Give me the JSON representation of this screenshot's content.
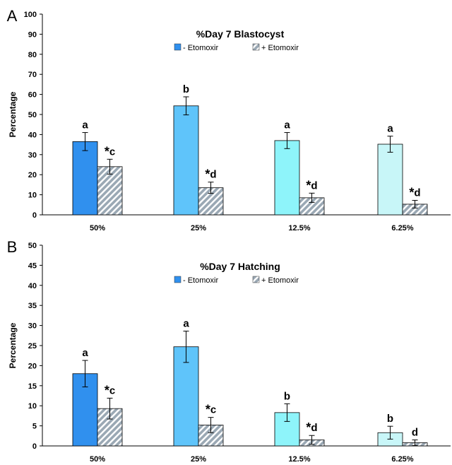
{
  "chart_data": [
    {
      "type": "bar",
      "panel": "A",
      "title": "%Day 7 Blastocyst",
      "ylabel": "Percentage",
      "xlabel": "",
      "ylim": [
        0,
        100
      ],
      "yticks": [
        0,
        10,
        20,
        30,
        40,
        50,
        60,
        70,
        80,
        90,
        100
      ],
      "categories": [
        "50%",
        "25%",
        "12.5%",
        "6.25%"
      ],
      "colors": [
        "#3090ee",
        "#5fc4fa",
        "#8ef4fa",
        "#c8f6f8"
      ],
      "hatch_color": "#9aa8b4",
      "legend_position": "top",
      "series": [
        {
          "name": "- Etomoxir",
          "values": [
            36.5,
            54.3,
            37.0,
            35.2
          ],
          "errors": [
            4.5,
            4.5,
            4.0,
            4.0
          ],
          "labels": [
            "a",
            "b",
            "a",
            "a"
          ]
        },
        {
          "name": "+ Etomoxir",
          "values": [
            24.0,
            13.5,
            8.5,
            5.3
          ],
          "errors": [
            3.7,
            2.8,
            2.3,
            1.9
          ],
          "labels": [
            "*c",
            "*d",
            "*d",
            "*d"
          ]
        }
      ]
    },
    {
      "type": "bar",
      "panel": "B",
      "title": "%Day 7 Hatching",
      "ylabel": "Percentage",
      "xlabel": "",
      "ylim": [
        0,
        50
      ],
      "yticks": [
        0,
        5,
        10,
        15,
        20,
        25,
        30,
        35,
        40,
        45,
        50
      ],
      "categories": [
        "50%",
        "25%",
        "12.5%",
        "6.25%"
      ],
      "colors": [
        "#3090ee",
        "#5fc4fa",
        "#8ef4fa",
        "#c8f6f8"
      ],
      "hatch_color": "#9aa8b4",
      "legend_position": "top",
      "series": [
        {
          "name": "- Etomoxir",
          "values": [
            18.0,
            24.7,
            8.3,
            3.3
          ],
          "errors": [
            3.3,
            3.9,
            2.2,
            1.6
          ],
          "labels": [
            "a",
            "a",
            "b",
            "b"
          ]
        },
        {
          "name": "+ Etomoxir",
          "values": [
            9.3,
            5.2,
            1.5,
            0.8
          ],
          "errors": [
            2.6,
            1.9,
            1.1,
            0.7
          ],
          "labels": [
            "*c",
            "*c",
            "*d",
            "d"
          ]
        }
      ]
    }
  ]
}
